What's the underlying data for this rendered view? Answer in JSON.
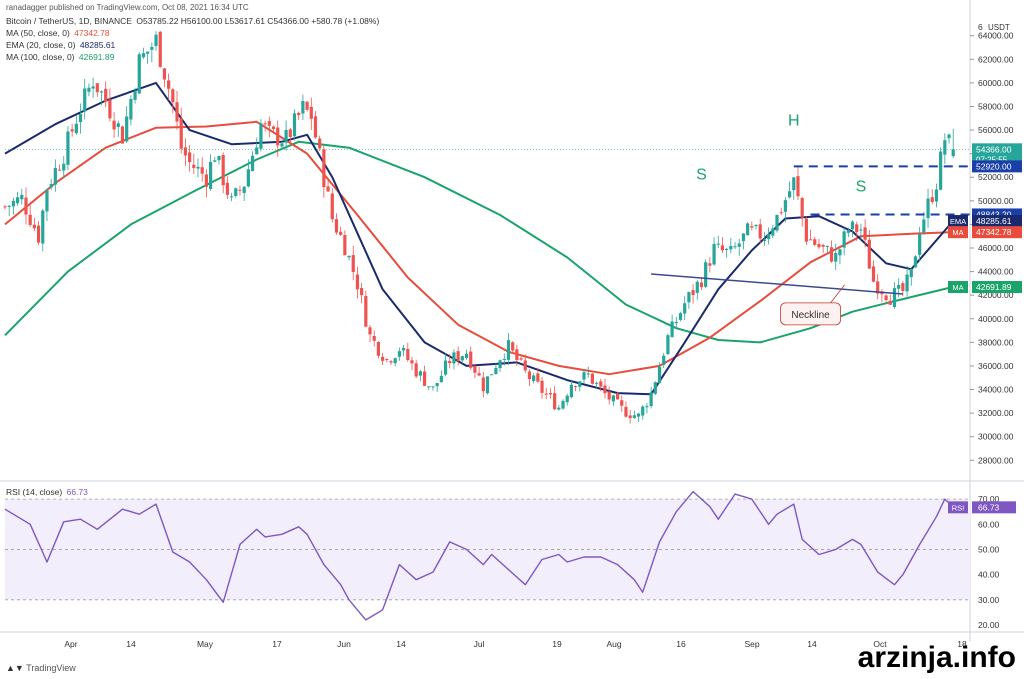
{
  "header": {
    "publisher_line": "ranadagger published on TradingView.com, Oct 08, 2021 16:34 UTC",
    "symbol_line": "Bitcoin / TetherUS, 1D, BINANCE",
    "ohlc": "O53785.22 H56100.00 L53617.61 C54366.00 +580.78 (+1.08%)",
    "ma50": {
      "label": "MA (50, close, 0)",
      "value": "47342.78",
      "color": "#e74c3c"
    },
    "ema20": {
      "label": "EMA (20, close, 0)",
      "value": "48285.61",
      "color": "#1a2a6c"
    },
    "ma100": {
      "label": "MA (100, close, 0)",
      "value": "42691.89",
      "color": "#1aa36b"
    },
    "rsi": {
      "label": "RSI (14, close)",
      "value": "66.73",
      "color": "#7e57c2"
    }
  },
  "price_axis": {
    "unit": "USDT",
    "ticks": [
      "28000.00",
      "30000.00",
      "32000.00",
      "34000.00",
      "36000.00",
      "38000.00",
      "40000.00",
      "42000.00",
      "44000.00",
      "46000.00",
      "48000.00",
      "50000.00",
      "52000.00",
      "54000.00",
      "56000.00",
      "58000.00",
      "60000.00",
      "62000.00",
      "64000.00"
    ],
    "tick_values": [
      28000,
      30000,
      32000,
      34000,
      36000,
      38000,
      40000,
      42000,
      44000,
      46000,
      48000,
      50000,
      52000,
      54000,
      56000,
      58000,
      60000,
      62000,
      64000
    ],
    "top_partial": "6",
    "badges": [
      {
        "text": "54366.00",
        "sub": "07:25:55",
        "value": 54366,
        "bg": "#26a69a",
        "fg": "#ffffff"
      },
      {
        "text": "52920.00",
        "value": 52920,
        "bg": "#1a3fa8",
        "fg": "#ffffff"
      },
      {
        "text": "48843.20",
        "value": 48843.2,
        "bg": "#1a3fa8",
        "fg": "#ffffff"
      },
      {
        "text": "48285.61",
        "value": 48285.61,
        "tag": "EMA",
        "bg": "#1a2a6c",
        "fg": "#ffffff"
      },
      {
        "text": "47342.78",
        "value": 47342.78,
        "tag": "MA",
        "bg": "#e74c3c",
        "fg": "#ffffff"
      },
      {
        "text": "42691.89",
        "value": 42691.89,
        "tag": "MA",
        "bg": "#1aa36b",
        "fg": "#ffffff"
      }
    ]
  },
  "rsi_axis": {
    "ticks": [
      "20.00",
      "30.00",
      "40.00",
      "50.00",
      "60.00",
      "70.00"
    ],
    "tick_values": [
      20,
      30,
      40,
      50,
      60,
      70
    ],
    "badge": {
      "tag": "RSI",
      "text": "66.73",
      "value": 66.73
    }
  },
  "time_axis": {
    "labels": [
      "Apr",
      "14",
      "May",
      "17",
      "Jun",
      "14",
      "Jul",
      "19",
      "Aug",
      "16",
      "Sep",
      "14",
      "Oct",
      "18"
    ],
    "positions": [
      71,
      131,
      205,
      277,
      344,
      401,
      479,
      557,
      614,
      681,
      752,
      812,
      880,
      962
    ]
  },
  "annotations": [
    {
      "text": "H",
      "x_day": 188,
      "price": 56400,
      "color": "#1aa36b"
    },
    {
      "text": "S",
      "x_day": 166,
      "price": 51800,
      "color": "#1aa36b"
    },
    {
      "text": "S",
      "x_day": 204,
      "price": 50800,
      "color": "#1aa36b"
    },
    {
      "text": "Neckline",
      "x_day": 192,
      "price": 40500,
      "color": "#c0392b"
    }
  ],
  "branding": {
    "tradingview": "TradingView",
    "watermark": "arzinja.info"
  },
  "chart_data": {
    "type": "candlestick",
    "start_date": "2021-03-01",
    "x_unit": "days",
    "ylim": [
      26500,
      65500
    ],
    "rsi_ylim": [
      18,
      76
    ],
    "resistance_lines": [
      {
        "from_day": 188,
        "to_day": 230,
        "value": 52920
      },
      {
        "from_day": 192,
        "to_day": 230,
        "value": 48843.2
      }
    ],
    "neckline": {
      "from": [
        154,
        43800
      ],
      "to": [
        214,
        42100
      ]
    },
    "rsi_levels": [
      30,
      50,
      70
    ],
    "candle_colors": {
      "up": "#26a69a",
      "down": "#ef5350"
    },
    "anchors": [
      [
        0,
        49500
      ],
      [
        4,
        50200
      ],
      [
        8,
        47000
      ],
      [
        10,
        51200
      ],
      [
        14,
        54000
      ],
      [
        17,
        57000
      ],
      [
        21,
        60300
      ],
      [
        24,
        58500
      ],
      [
        28,
        55500
      ],
      [
        32,
        61800
      ],
      [
        36,
        63600
      ],
      [
        40,
        58300
      ],
      [
        42,
        54500
      ],
      [
        44,
        53200
      ],
      [
        48,
        52000
      ],
      [
        50,
        54000
      ],
      [
        54,
        49800
      ],
      [
        57,
        51500
      ],
      [
        61,
        56500
      ],
      [
        63,
        55600
      ],
      [
        67,
        55200
      ],
      [
        71,
        57800
      ],
      [
        73,
        57200
      ],
      [
        78,
        48500
      ],
      [
        81,
        46200
      ],
      [
        84,
        43000
      ],
      [
        87,
        38500
      ],
      [
        91,
        36500
      ],
      [
        94,
        37500
      ],
      [
        98,
        35600
      ],
      [
        102,
        34000
      ],
      [
        106,
        36500
      ],
      [
        110,
        37200
      ],
      [
        114,
        34300
      ],
      [
        118,
        36800
      ],
      [
        120,
        37600
      ],
      [
        124,
        35400
      ],
      [
        128,
        33900
      ],
      [
        132,
        32500
      ],
      [
        135,
        34600
      ],
      [
        139,
        35200
      ],
      [
        143,
        33600
      ],
      [
        147,
        32300
      ],
      [
        151,
        31700
      ],
      [
        154,
        33700
      ],
      [
        158,
        38400
      ],
      [
        162,
        41300
      ],
      [
        166,
        43400
      ],
      [
        169,
        45900
      ],
      [
        173,
        45500
      ],
      [
        177,
        47300
      ],
      [
        181,
        47100
      ],
      [
        184,
        48600
      ],
      [
        188,
        51600
      ],
      [
        191,
        47000
      ],
      [
        194,
        46100
      ],
      [
        198,
        45200
      ],
      [
        201,
        47600
      ],
      [
        204,
        47600
      ],
      [
        207,
        43200
      ],
      [
        211,
        41900
      ],
      [
        214,
        42300
      ],
      [
        216,
        43700
      ],
      [
        218,
        47700
      ],
      [
        222,
        51600
      ],
      [
        224,
        55300
      ],
      [
        226,
        54400
      ]
    ],
    "ma50_pts": [
      [
        0,
        48000
      ],
      [
        12,
        51500
      ],
      [
        24,
        54500
      ],
      [
        36,
        56200
      ],
      [
        48,
        56300
      ],
      [
        60,
        56700
      ],
      [
        72,
        54000
      ],
      [
        84,
        48800
      ],
      [
        96,
        43500
      ],
      [
        108,
        39500
      ],
      [
        120,
        37200
      ],
      [
        132,
        36000
      ],
      [
        144,
        35300
      ],
      [
        156,
        36000
      ],
      [
        168,
        38400
      ],
      [
        180,
        41500
      ],
      [
        192,
        44800
      ],
      [
        204,
        47000
      ],
      [
        216,
        47200
      ],
      [
        226,
        47350
      ]
    ],
    "ema20_pts": [
      [
        0,
        54000
      ],
      [
        12,
        56500
      ],
      [
        24,
        58500
      ],
      [
        36,
        60000
      ],
      [
        44,
        56000
      ],
      [
        54,
        54800
      ],
      [
        66,
        55000
      ],
      [
        72,
        55600
      ],
      [
        78,
        52000
      ],
      [
        90,
        42500
      ],
      [
        100,
        38000
      ],
      [
        110,
        36000
      ],
      [
        122,
        36300
      ],
      [
        134,
        34800
      ],
      [
        146,
        33700
      ],
      [
        154,
        33600
      ],
      [
        162,
        38000
      ],
      [
        170,
        42500
      ],
      [
        178,
        45800
      ],
      [
        186,
        48500
      ],
      [
        194,
        48700
      ],
      [
        202,
        47400
      ],
      [
        210,
        44700
      ],
      [
        216,
        44200
      ],
      [
        226,
        48300
      ]
    ],
    "ma100_pts": [
      [
        0,
        38600
      ],
      [
        15,
        44000
      ],
      [
        30,
        48000
      ],
      [
        45,
        50800
      ],
      [
        60,
        53500
      ],
      [
        70,
        55000
      ],
      [
        82,
        54500
      ],
      [
        100,
        52000
      ],
      [
        118,
        48800
      ],
      [
        134,
        45200
      ],
      [
        148,
        41200
      ],
      [
        160,
        39200
      ],
      [
        170,
        38200
      ],
      [
        180,
        38000
      ],
      [
        192,
        39200
      ],
      [
        202,
        40600
      ],
      [
        212,
        41500
      ],
      [
        226,
        42700
      ]
    ],
    "rsi_pts": [
      [
        0,
        66
      ],
      [
        6,
        60
      ],
      [
        10,
        45
      ],
      [
        14,
        61
      ],
      [
        18,
        62
      ],
      [
        22,
        58
      ],
      [
        28,
        66
      ],
      [
        32,
        64
      ],
      [
        36,
        68
      ],
      [
        40,
        49
      ],
      [
        44,
        45
      ],
      [
        48,
        38
      ],
      [
        52,
        29
      ],
      [
        56,
        52
      ],
      [
        60,
        58
      ],
      [
        62,
        55
      ],
      [
        66,
        56
      ],
      [
        70,
        59
      ],
      [
        72,
        56
      ],
      [
        76,
        44
      ],
      [
        80,
        36
      ],
      [
        82,
        30
      ],
      [
        86,
        22
      ],
      [
        90,
        26
      ],
      [
        94,
        44
      ],
      [
        98,
        38
      ],
      [
        102,
        41
      ],
      [
        106,
        53
      ],
      [
        110,
        50
      ],
      [
        114,
        44
      ],
      [
        116,
        48
      ],
      [
        120,
        42
      ],
      [
        124,
        36
      ],
      [
        128,
        46
      ],
      [
        132,
        48
      ],
      [
        134,
        45
      ],
      [
        138,
        47
      ],
      [
        142,
        47
      ],
      [
        146,
        44
      ],
      [
        150,
        38
      ],
      [
        152,
        33
      ],
      [
        156,
        53
      ],
      [
        160,
        65
      ],
      [
        164,
        73
      ],
      [
        168,
        67
      ],
      [
        170,
        62
      ],
      [
        174,
        72
      ],
      [
        178,
        70
      ],
      [
        182,
        60
      ],
      [
        184,
        64
      ],
      [
        188,
        68
      ],
      [
        190,
        54
      ],
      [
        194,
        48
      ],
      [
        198,
        50
      ],
      [
        202,
        54
      ],
      [
        204,
        52
      ],
      [
        208,
        41
      ],
      [
        212,
        36
      ],
      [
        214,
        40
      ],
      [
        218,
        52
      ],
      [
        222,
        63
      ],
      [
        224,
        70
      ],
      [
        226,
        67
      ]
    ]
  }
}
